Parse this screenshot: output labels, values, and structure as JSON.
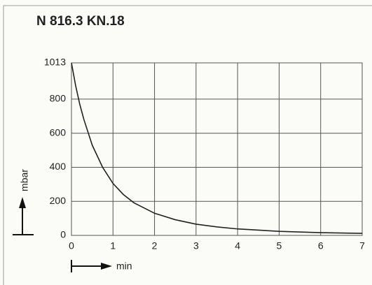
{
  "chart_data": {
    "type": "line",
    "title": "N 816.3 KN.18",
    "x_label": "min",
    "y_label": "mbar",
    "x": [
      0,
      0.1,
      0.2,
      0.3,
      0.5,
      0.75,
      1,
      1.25,
      1.5,
      2,
      2.5,
      3,
      3.5,
      4,
      5,
      6,
      7
    ],
    "series": [
      {
        "name": "N 816.3 KN.18",
        "color": "#222222",
        "values": [
          1013,
          880,
          770,
          680,
          530,
          400,
          305,
          240,
          192,
          130,
          92,
          66,
          50,
          38,
          24,
          16,
          12
        ]
      }
    ],
    "xlim": [
      0,
      7
    ],
    "xticks": [
      0,
      1,
      2,
      3,
      4,
      5,
      6,
      7
    ],
    "ylim": [
      0,
      1013
    ],
    "yticks": [
      0,
      200,
      400,
      600,
      800,
      1013
    ],
    "grid": true
  }
}
